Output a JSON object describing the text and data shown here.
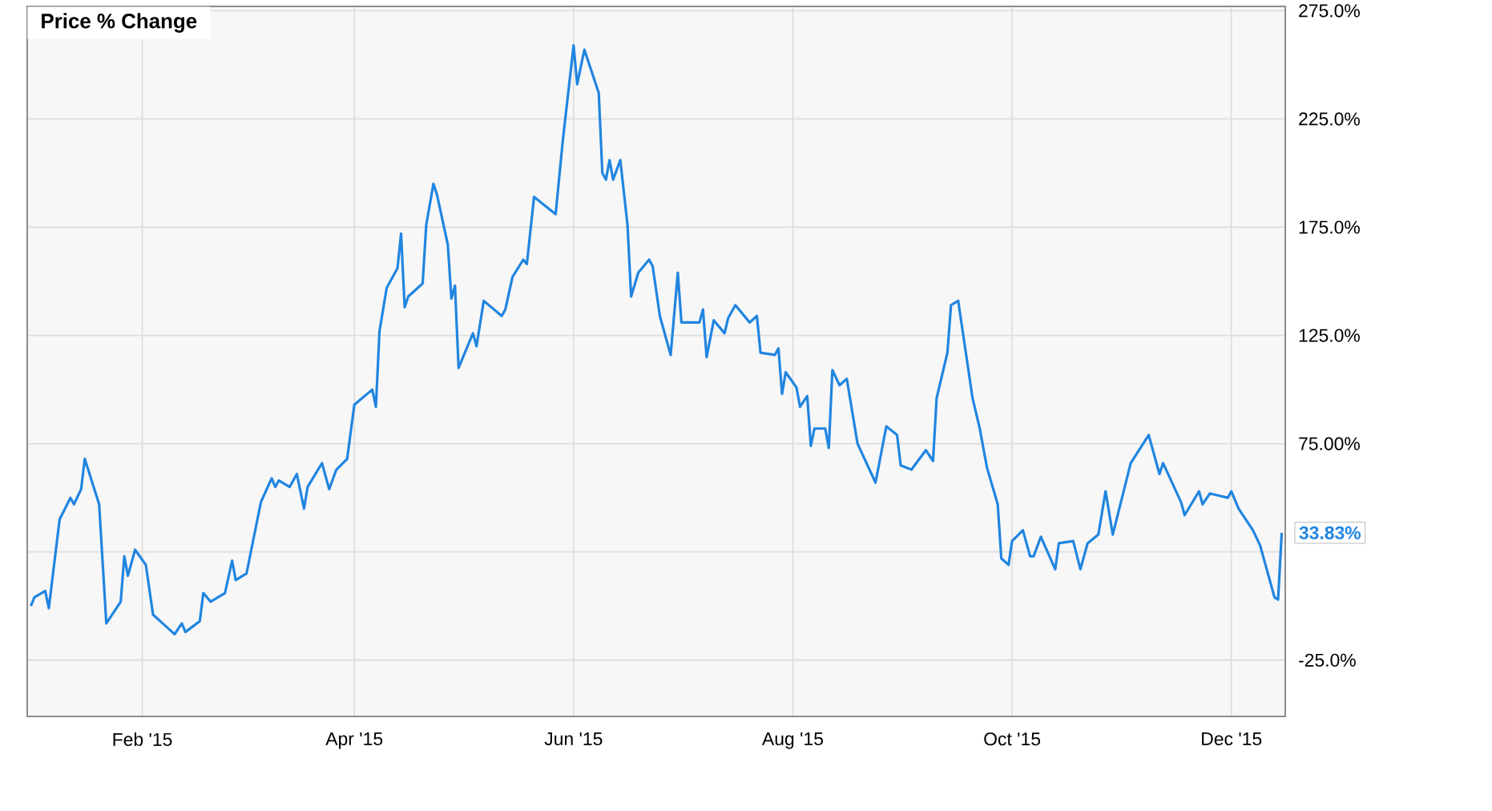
{
  "chart_data": {
    "type": "line",
    "title": "Price % Change",
    "x": [
      "2015-01-01",
      "2015-01-02",
      "2015-01-05",
      "2015-01-06",
      "2015-01-09",
      "2015-01-12",
      "2015-01-13",
      "2015-01-15",
      "2015-01-16",
      "2015-01-20",
      "2015-01-22",
      "2015-01-26",
      "2015-01-27",
      "2015-01-28",
      "2015-01-30",
      "2015-02-02",
      "2015-02-04",
      "2015-02-06",
      "2015-02-10",
      "2015-02-12",
      "2015-02-13",
      "2015-02-17",
      "2015-02-18",
      "2015-02-20",
      "2015-02-24",
      "2015-02-26",
      "2015-02-27",
      "2015-03-02",
      "2015-03-06",
      "2015-03-09",
      "2015-03-10",
      "2015-03-11",
      "2015-03-14",
      "2015-03-16",
      "2015-03-18",
      "2015-03-19",
      "2015-03-23",
      "2015-03-25",
      "2015-03-27",
      "2015-03-30",
      "2015-04-01",
      "2015-04-06",
      "2015-04-07",
      "2015-04-08",
      "2015-04-10",
      "2015-04-13",
      "2015-04-14",
      "2015-04-15",
      "2015-04-16",
      "2015-04-20",
      "2015-04-21",
      "2015-04-23",
      "2015-04-24",
      "2015-04-27",
      "2015-04-28",
      "2015-04-29",
      "2015-04-30",
      "2015-05-03",
      "2015-05-04",
      "2015-05-05",
      "2015-05-07",
      "2015-05-12",
      "2015-05-13",
      "2015-05-15",
      "2015-05-18",
      "2015-05-19",
      "2015-05-21",
      "2015-05-27",
      "2015-05-29",
      "2015-06-01",
      "2015-06-02",
      "2015-06-04",
      "2015-06-08",
      "2015-06-09",
      "2015-06-10",
      "2015-06-11",
      "2015-06-12",
      "2015-06-14",
      "2015-06-16",
      "2015-06-17",
      "2015-06-19",
      "2015-06-22",
      "2015-06-23",
      "2015-06-25",
      "2015-06-28",
      "2015-06-30",
      "2015-07-01",
      "2015-07-06",
      "2015-07-07",
      "2015-07-08",
      "2015-07-10",
      "2015-07-13",
      "2015-07-14",
      "2015-07-16",
      "2015-07-20",
      "2015-07-22",
      "2015-07-23",
      "2015-07-27",
      "2015-07-28",
      "2015-07-29",
      "2015-07-30",
      "2015-08-02",
      "2015-08-03",
      "2015-08-05",
      "2015-08-06",
      "2015-08-07",
      "2015-08-10",
      "2015-08-11",
      "2015-08-12",
      "2015-08-14",
      "2015-08-16",
      "2015-08-19",
      "2015-08-24",
      "2015-08-27",
      "2015-08-30",
      "2015-08-31",
      "2015-09-03",
      "2015-09-07",
      "2015-09-09",
      "2015-09-10",
      "2015-09-13",
      "2015-09-14",
      "2015-09-16",
      "2015-09-20",
      "2015-09-22",
      "2015-09-24",
      "2015-09-27",
      "2015-09-28",
      "2015-09-30",
      "2015-10-01",
      "2015-10-04",
      "2015-10-06",
      "2015-10-07",
      "2015-10-09",
      "2015-10-13",
      "2015-10-14",
      "2015-10-18",
      "2015-10-20",
      "2015-10-22",
      "2015-10-25",
      "2015-10-27",
      "2015-10-29",
      "2015-11-03",
      "2015-11-08",
      "2015-11-11",
      "2015-11-12",
      "2015-11-17",
      "2015-11-18",
      "2015-11-22",
      "2015-11-23",
      "2015-11-25",
      "2015-11-30",
      "2015-12-01",
      "2015-12-03",
      "2015-12-07",
      "2015-12-09",
      "2015-12-13",
      "2015-12-14",
      "2015-12-15"
    ],
    "series": [
      {
        "color": "#2185e0",
        "values": [
          0,
          4,
          7,
          -1,
          40,
          50,
          47,
          54,
          68,
          47,
          -8,
          2,
          23,
          14,
          26,
          19,
          -4,
          -7,
          -13,
          -8,
          -12,
          -7,
          6,
          2,
          6,
          21,
          12,
          15,
          48,
          59,
          55,
          58,
          55,
          61,
          45,
          55,
          66,
          54,
          63,
          68,
          93,
          100,
          92,
          127,
          147,
          156,
          172,
          138,
          143,
          149,
          176,
          195,
          190,
          167,
          142,
          148,
          110,
          122,
          126,
          120,
          141,
          134,
          137,
          152,
          160,
          158,
          189,
          181,
          215,
          259,
          241,
          257,
          237,
          200,
          197,
          206,
          197,
          206,
          176,
          143,
          154,
          160,
          157,
          134,
          116,
          154,
          131,
          131,
          137,
          115,
          132,
          126,
          133,
          139,
          131,
          134,
          117,
          116,
          119,
          98,
          108,
          101,
          92,
          97,
          74,
          82,
          82,
          73,
          109,
          102,
          105,
          75,
          57,
          83,
          79,
          65,
          63,
          72,
          67,
          96,
          117,
          139,
          141,
          96,
          82,
          64,
          47,
          22,
          19,
          30,
          35,
          23,
          23,
          32,
          17,
          29,
          30,
          17,
          29,
          33,
          53,
          33,
          66,
          79,
          61,
          66,
          48,
          42,
          53,
          47,
          52,
          50,
          53,
          45,
          35,
          28,
          4,
          3,
          33.83
        ]
      }
    ],
    "xlim": [
      "2014-12-31",
      "2015-12-16"
    ],
    "xticks": [
      {
        "value": "2015-02-01",
        "label": "Feb '15"
      },
      {
        "value": "2015-04-01",
        "label": "Apr '15"
      },
      {
        "value": "2015-06-01",
        "label": "Jun '15"
      },
      {
        "value": "2015-08-01",
        "label": "Aug '15"
      },
      {
        "value": "2015-10-01",
        "label": "Oct '15"
      },
      {
        "value": "2015-12-01",
        "label": "Dec '15"
      }
    ],
    "ylim": [
      -51,
      277
    ],
    "yticks": [
      {
        "value": -25,
        "label": "-25.0%"
      },
      {
        "value": 25,
        "label": null
      },
      {
        "value": 75,
        "label": "75.00%"
      },
      {
        "value": 125,
        "label": "125.0%"
      },
      {
        "value": 175,
        "label": "175.0%"
      },
      {
        "value": 225,
        "label": "225.0%"
      },
      {
        "value": 275,
        "label": "275.0%"
      }
    ],
    "grid": true,
    "annotations": [
      {
        "text": "33.83%",
        "x": "2015-12-15",
        "y": 33.83
      }
    ]
  }
}
